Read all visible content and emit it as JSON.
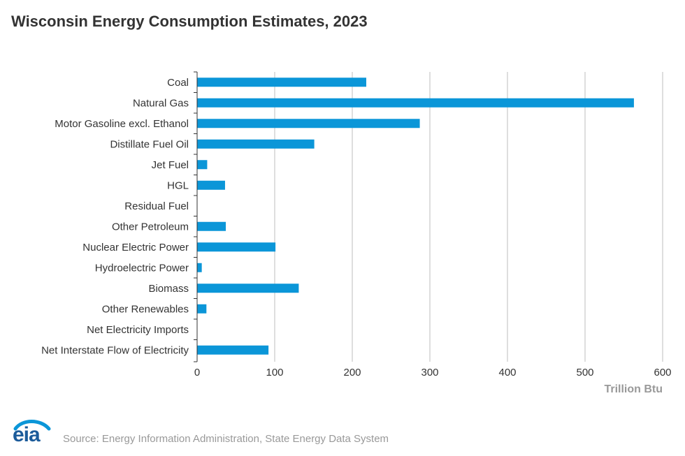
{
  "page_title": "Wisconsin Energy Consumption Estimates, 2023",
  "source_text": "Source: Energy Information Administration, State Energy Data System",
  "logo_text": "eia",
  "colors": {
    "bar": "#0b96d8",
    "grid": "#c8c8c8",
    "axis": "#333333",
    "logo": "#1c5b9a"
  },
  "chart_data": {
    "type": "bar",
    "orientation": "horizontal",
    "title": "Wisconsin Energy Consumption Estimates, 2023",
    "xlabel": "Trillion Btu",
    "ylabel": "",
    "xlim": [
      0,
      600
    ],
    "xticks": [
      0,
      100,
      200,
      300,
      400,
      500,
      600
    ],
    "grid": true,
    "categories": [
      "Coal",
      "Natural Gas",
      "Motor Gasoline excl. Ethanol",
      "Distillate Fuel Oil",
      "Jet Fuel",
      "HGL",
      "Residual Fuel",
      "Other Petroleum",
      "Nuclear Electric Power",
      "Hydroelectric Power",
      "Biomass",
      "Other Renewables",
      "Net Electricity Imports",
      "Net Interstate Flow of Electricity"
    ],
    "values": [
      218,
      563,
      287,
      151,
      13,
      36,
      0,
      37,
      101,
      6,
      131,
      12,
      0,
      92
    ]
  }
}
